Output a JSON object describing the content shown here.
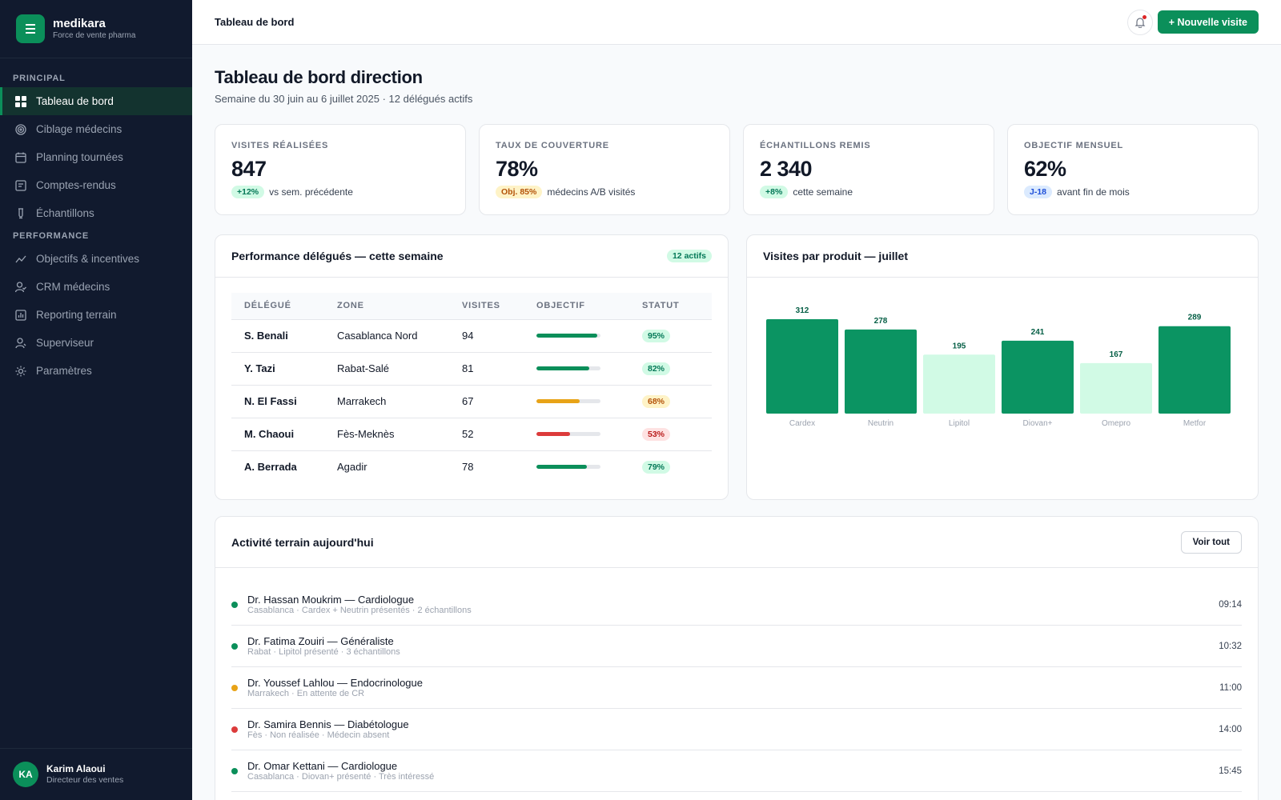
{
  "brand": {
    "name": "medikara",
    "subtitle": "Force de vente pharma"
  },
  "nav": {
    "sections": [
      {
        "title": "PRINCIPAL",
        "items": [
          {
            "label": "Tableau de bord",
            "icon": "grid-icon",
            "active": true
          },
          {
            "label": "Ciblage médecins",
            "icon": "target-icon"
          },
          {
            "label": "Planning tournées",
            "icon": "calendar-icon"
          },
          {
            "label": "Comptes-rendus",
            "icon": "document-icon"
          },
          {
            "label": "Échantillons",
            "icon": "flask-icon"
          }
        ]
      },
      {
        "title": "PERFORMANCE",
        "items": [
          {
            "label": "Objectifs & incentives",
            "icon": "trend-icon"
          },
          {
            "label": "CRM médecins",
            "icon": "user-check-icon"
          },
          {
            "label": "Reporting terrain",
            "icon": "chart-icon"
          },
          {
            "label": "Superviseur",
            "icon": "user-icon"
          },
          {
            "label": "Paramètres",
            "icon": "gear-icon"
          }
        ]
      }
    ]
  },
  "user": {
    "initials": "KA",
    "name": "Karim Alaoui",
    "role": "Directeur des ventes"
  },
  "topbar": {
    "title": "Tableau de bord",
    "new_visit": "+ Nouvelle visite"
  },
  "page": {
    "title": "Tableau de bord direction",
    "subtitle": "Semaine du 30 juin au 6 juillet 2025 · 12 délégués actifs"
  },
  "kpis": [
    {
      "label": "VISITES RÉALISÉES",
      "value": "847",
      "badge": "+12%",
      "badge_color": "green",
      "note": "vs sem. précédente"
    },
    {
      "label": "TAUX DE COUVERTURE",
      "value": "78%",
      "badge": "Obj. 85%",
      "badge_color": "amber",
      "note": "médecins A/B visités"
    },
    {
      "label": "ÉCHANTILLONS REMIS",
      "value": "2 340",
      "badge": "+8%",
      "badge_color": "green",
      "note": "cette semaine"
    },
    {
      "label": "OBJECTIF MENSUEL",
      "value": "62%",
      "badge": "J-18",
      "badge_color": "blue",
      "note": "avant fin de mois"
    }
  ],
  "performance": {
    "title": "Performance délégués — cette semaine",
    "badge": "12 actifs",
    "columns": [
      "DÉLÉGUÉ",
      "ZONE",
      "VISITES",
      "OBJECTIF",
      "STATUT"
    ],
    "rows": [
      {
        "name": "S. Benali",
        "zone": "Casablanca Nord",
        "visits": "94",
        "progress": 95,
        "status": "95%",
        "color": "#0b8f5a",
        "pill": "green"
      },
      {
        "name": "Y. Tazi",
        "zone": "Rabat-Salé",
        "visits": "81",
        "progress": 82,
        "status": "82%",
        "color": "#0b8f5a",
        "pill": "green"
      },
      {
        "name": "N. El Fassi",
        "zone": "Marrakech",
        "visits": "67",
        "progress": 68,
        "status": "68%",
        "color": "#e8a317",
        "pill": "amber"
      },
      {
        "name": "M. Chaoui",
        "zone": "Fès-Meknès",
        "visits": "52",
        "progress": 53,
        "status": "53%",
        "color": "#dc3b3b",
        "pill": "red"
      },
      {
        "name": "A. Berrada",
        "zone": "Agadir",
        "visits": "78",
        "progress": 79,
        "status": "79%",
        "color": "#0b8f5a",
        "pill": "green"
      }
    ]
  },
  "chart_data": {
    "type": "bar",
    "title": "Visites par produit — juillet",
    "categories": [
      "Cardex",
      "Neutrin",
      "Lipitol",
      "Diovan+",
      "Omepro",
      "Metfor"
    ],
    "values": [
      312,
      278,
      195,
      241,
      167,
      289
    ],
    "highlight": [
      true,
      true,
      false,
      true,
      false,
      true
    ],
    "colors": {
      "primary": "#0b9462",
      "muted": "#d1fae5",
      "label": "#065f46"
    },
    "xlabel": "",
    "ylabel": "",
    "ylim": [
      0,
      312
    ]
  },
  "activity": {
    "title": "Activité terrain aujourd'hui",
    "view_all": "Voir tout",
    "items": [
      {
        "title": "Dr. Hassan Moukrim — Cardiologue",
        "sub": "Casablanca · Cardex + Neutrin présentés · 2 échantillons",
        "time": "09:14",
        "color": "#0b8f5a"
      },
      {
        "title": "Dr. Fatima Zouiri — Généraliste",
        "sub": "Rabat · Lipitol présenté · 3 échantillons",
        "time": "10:32",
        "color": "#0b8f5a"
      },
      {
        "title": "Dr. Youssef Lahlou — Endocrinologue",
        "sub": "Marrakech · En attente de CR",
        "time": "11:00",
        "color": "#e8a317"
      },
      {
        "title": "Dr. Samira Bennis — Diabétologue",
        "sub": "Fès · Non réalisée · Médecin absent",
        "time": "14:00",
        "color": "#dc3b3b"
      },
      {
        "title": "Dr. Omar Kettani — Cardiologue",
        "sub": "Casablanca · Diovan+ présenté · Très intéressé",
        "time": "15:45",
        "color": "#0b8f5a"
      }
    ]
  }
}
